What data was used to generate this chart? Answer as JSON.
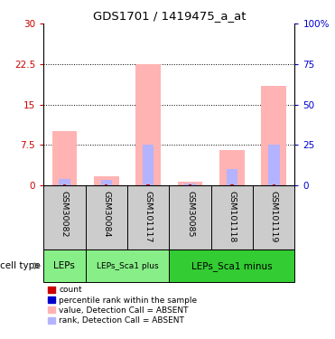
{
  "title": "GDS1701 / 1419475_a_at",
  "samples": [
    "GSM30082",
    "GSM30084",
    "GSM101117",
    "GSM30085",
    "GSM101118",
    "GSM101119"
  ],
  "value_absent": [
    10.0,
    1.7,
    22.5,
    0.7,
    6.5,
    18.5
  ],
  "rank_absent": [
    1.2,
    1.0,
    7.5,
    0.3,
    3.0,
    7.5
  ],
  "count_absent": [
    0.12,
    0.12,
    0.12,
    0.12,
    0.12,
    0.12
  ],
  "ylim": [
    0,
    30
  ],
  "yticks": [
    0,
    7.5,
    15,
    22.5,
    30
  ],
  "ytick_labels": [
    "0",
    "7.5",
    "15",
    "22.5",
    "30"
  ],
  "y2ticks": [
    0,
    25,
    50,
    75,
    100
  ],
  "y2tick_labels": [
    "0",
    "25",
    "50",
    "75",
    "100%"
  ],
  "color_value_absent": "#ffb3b3",
  "color_rank_absent": "#b3b3ff",
  "color_count_red": "#cc0000",
  "color_rank_blue": "#0000cc",
  "cell_type_groups": [
    {
      "label": "LEPs",
      "start": 0,
      "end": 1,
      "color": "#88ee88"
    },
    {
      "label": "LEPs_Sca1 plus",
      "start": 1,
      "end": 3,
      "color": "#88ee88"
    },
    {
      "label": "LEPs_Sca1 minus",
      "start": 3,
      "end": 6,
      "color": "#33cc33"
    }
  ],
  "bar_width": 0.6,
  "background_color": "#ffffff",
  "tick_color_left": "#cc0000",
  "tick_color_right": "#0000cc",
  "label_area_color": "#cccccc",
  "cell_type_label": "cell type"
}
